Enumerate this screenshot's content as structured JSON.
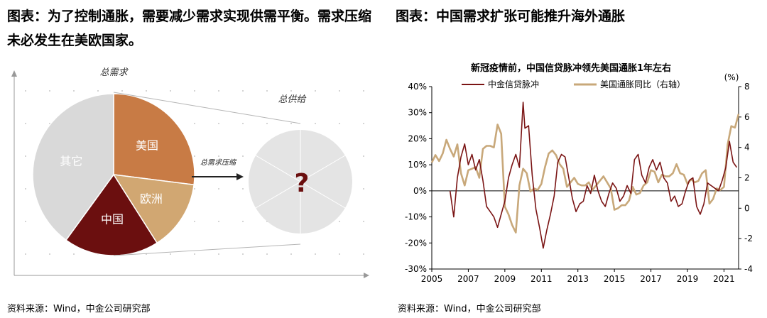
{
  "left_panel": {
    "title": "图表：为了控制通胀，需要减少需求实现供需平衡。需求压缩未必发生在美欧国家。",
    "source": "资料来源：Wind，中金公司研究部"
  },
  "right_panel": {
    "title": "图表：中国需求扩张可能推升海外通胀",
    "source": "资料来源：Wind，中金公司研究部"
  },
  "colors": {
    "china": "#6b0f0f",
    "us": "#c87b45",
    "europe": "#d1a772",
    "other": "#d9d9d9",
    "supply_circle": "#e4e4e4",
    "question_mark": "#6b0f0f",
    "credit_line": "#7a1414",
    "cpi_line": "#c8a87a"
  },
  "chart_data": [
    {
      "type": "pie",
      "title": "",
      "labels": {
        "total_demand": "总需求",
        "total_supply": "总供给",
        "compress": "总需求压缩",
        "unknown": "?"
      },
      "slices": [
        {
          "name": "美国",
          "value": 27
        },
        {
          "name": "欧洲",
          "value": 14
        },
        {
          "name": "中国",
          "value": 19
        },
        {
          "name": "其它",
          "value": 40
        }
      ]
    },
    {
      "type": "line",
      "title": "新冠疫情前，中国信贷脉冲领先美国通胀1年左右",
      "xlabel": "",
      "ylabel": "",
      "y2label": "(%)",
      "x_ticks": [
        "2005",
        "2007",
        "2009",
        "2011",
        "2013",
        "2015",
        "2017",
        "2019",
        "2021"
      ],
      "y_ticks": [
        "40%",
        "30%",
        "20%",
        "10%",
        "0%",
        "-10%",
        "-20%",
        "-30%"
      ],
      "y2_ticks": [
        "8",
        "6",
        "4",
        "2",
        "0",
        "-2",
        "-4"
      ],
      "xlim": [
        2005,
        2021.8
      ],
      "ylim": [
        -30,
        40
      ],
      "y2lim": [
        -4,
        8
      ],
      "series": [
        {
          "name": "中金信贷脉冲",
          "axis": "left",
          "x": [
            2006.0,
            2006.2,
            2006.4,
            2006.6,
            2006.8,
            2007.0,
            2007.2,
            2007.4,
            2007.6,
            2007.8,
            2008.0,
            2008.2,
            2008.4,
            2008.6,
            2008.8,
            2009.0,
            2009.2,
            2009.4,
            2009.6,
            2009.8,
            2010.0,
            2010.1,
            2010.3,
            2010.5,
            2010.7,
            2010.9,
            2011.1,
            2011.3,
            2011.5,
            2011.7,
            2011.9,
            2012.1,
            2012.3,
            2012.5,
            2012.7,
            2012.9,
            2013.1,
            2013.3,
            2013.5,
            2013.7,
            2013.9,
            2014.1,
            2014.3,
            2014.5,
            2014.7,
            2014.9,
            2015.1,
            2015.3,
            2015.5,
            2015.7,
            2015.9,
            2016.1,
            2016.3,
            2016.5,
            2016.7,
            2016.9,
            2017.1,
            2017.3,
            2017.5,
            2017.7,
            2017.9,
            2018.1,
            2018.3,
            2018.5,
            2018.7,
            2018.9,
            2019.1,
            2019.3,
            2019.5,
            2019.7,
            2019.9,
            2020.1,
            2020.3,
            2020.5,
            2020.7,
            2020.9,
            2021.1,
            2021.3,
            2021.5,
            2021.7
          ],
          "values": [
            0,
            -10,
            5,
            13,
            18,
            10,
            14,
            8,
            12,
            4,
            -6,
            -8,
            -10,
            -14,
            -9,
            -4,
            5,
            10,
            14,
            9,
            34,
            24,
            25,
            6,
            -7,
            -14,
            -22,
            -15,
            -9,
            -2,
            11,
            14,
            13,
            5,
            -3,
            -8,
            -5,
            -4,
            2,
            -1,
            6,
            0,
            -4,
            -6,
            -1,
            3,
            1,
            -4,
            -2,
            2,
            -1,
            12,
            14,
            6,
            3,
            9,
            12,
            8,
            11,
            5,
            3,
            -4,
            -2,
            -6,
            -5,
            0,
            4,
            5,
            -6,
            -9,
            -5,
            3,
            2,
            1,
            0,
            4,
            9,
            19,
            11,
            9
          ]
        },
        {
          "name": "美国通胀同比（右轴）",
          "axis": "right",
          "x": [
            2005.0,
            2005.2,
            2005.4,
            2005.6,
            2005.8,
            2006.0,
            2006.2,
            2006.4,
            2006.6,
            2006.8,
            2007.0,
            2007.2,
            2007.4,
            2007.6,
            2007.8,
            2008.0,
            2008.2,
            2008.4,
            2008.6,
            2008.8,
            2009.0,
            2009.2,
            2009.4,
            2009.6,
            2009.8,
            2010.0,
            2010.2,
            2010.4,
            2010.6,
            2010.8,
            2011.0,
            2011.2,
            2011.4,
            2011.6,
            2011.8,
            2012.0,
            2012.2,
            2012.4,
            2012.6,
            2012.8,
            2013.0,
            2013.2,
            2013.4,
            2013.6,
            2013.8,
            2014.0,
            2014.2,
            2014.4,
            2014.6,
            2014.8,
            2015.0,
            2015.2,
            2015.4,
            2015.6,
            2015.8,
            2016.0,
            2016.2,
            2016.4,
            2016.6,
            2016.8,
            2017.0,
            2017.2,
            2017.4,
            2017.6,
            2017.8,
            2018.0,
            2018.2,
            2018.4,
            2018.6,
            2018.8,
            2019.0,
            2019.2,
            2019.4,
            2019.6,
            2019.8,
            2020.0,
            2020.2,
            2020.4,
            2020.6,
            2020.8,
            2021.0,
            2021.2,
            2021.4,
            2021.6,
            2021.8
          ],
          "values": [
            3.0,
            3.5,
            3.1,
            3.6,
            4.5,
            3.9,
            3.4,
            4.2,
            2.3,
            1.5,
            2.5,
            2.6,
            2.7,
            2.0,
            3.9,
            4.1,
            4.1,
            4.0,
            5.5,
            4.9,
            0.1,
            -0.4,
            -1.1,
            -1.6,
            1.5,
            2.6,
            2.3,
            1.1,
            1.3,
            1.2,
            1.6,
            2.7,
            3.6,
            3.8,
            3.5,
            2.9,
            2.6,
            1.4,
            1.7,
            2.0,
            1.6,
            1.5,
            1.5,
            1.7,
            1.2,
            1.5,
            1.8,
            2.1,
            1.7,
            1.3,
            -0.1,
            0.0,
            0.2,
            0.2,
            0.5,
            1.4,
            0.9,
            1.0,
            1.5,
            1.7,
            2.5,
            2.4,
            1.7,
            2.2,
            2.1,
            2.1,
            2.3,
            2.9,
            2.3,
            2.2,
            1.6,
            1.9,
            1.7,
            1.8,
            2.3,
            2.5,
            0.3,
            0.6,
            1.3,
            1.2,
            1.4,
            4.2,
            5.4,
            5.3,
            6.2
          ]
        }
      ]
    }
  ]
}
